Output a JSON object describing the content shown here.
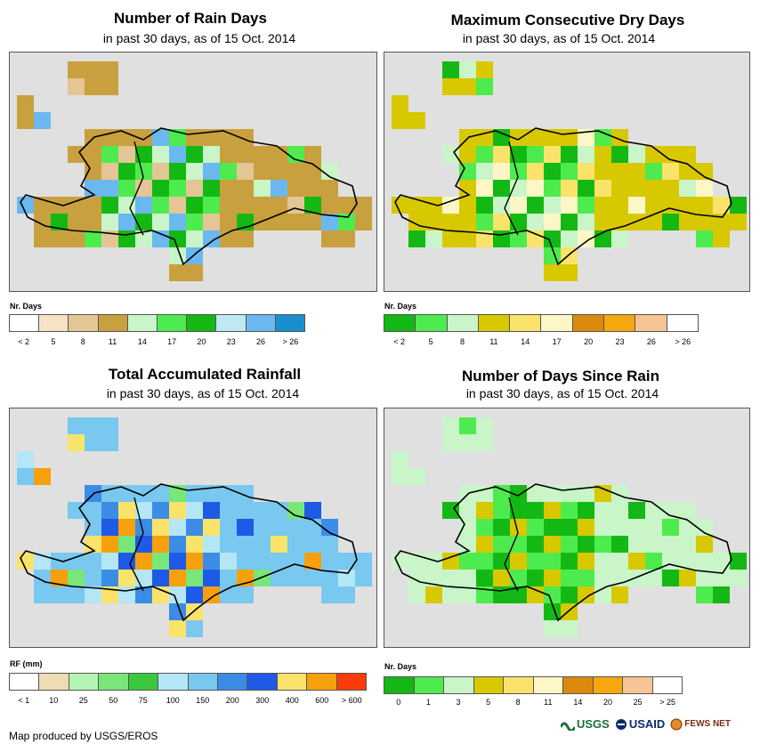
{
  "panels": [
    {
      "id": "rain-days",
      "title": "Number of Rain Days",
      "subtitle": "in past 30 days, as of 15 Oct. 2014",
      "legend_title": "Nr. Days",
      "legend_colors": [
        "#ffffff",
        "#f5e3c8",
        "#e3c596",
        "#c9a03e",
        "#c9f5c9",
        "#4eeb4e",
        "#14b814",
        "#bfe8f5",
        "#6ab8ee",
        "#1a8fd0"
      ],
      "legend_ticks": [
        "< 2",
        "5",
        "8",
        "11",
        "14",
        "17",
        "20",
        "23",
        "26",
        "> 26"
      ],
      "fill_color": "#c9a03e",
      "accent_colors": [
        "#14b814",
        "#4eeb4e",
        "#c9f5c9",
        "#e3c596",
        "#6ab8ee"
      ]
    },
    {
      "id": "max-dry-days",
      "title": "Maximum Consecutive Dry Days",
      "subtitle": "in past 30 days, as of 15 Oct. 2014",
      "legend_title": "Nr. Days",
      "legend_colors": [
        "#14b814",
        "#4eeb4e",
        "#c9f5c9",
        "#d8c800",
        "#fae36a",
        "#fdf7c8",
        "#db8a0e",
        "#f6a70e",
        "#f7c493",
        "#ffffff"
      ],
      "legend_ticks": [
        "< 2",
        "5",
        "8",
        "11",
        "14",
        "17",
        "20",
        "23",
        "26",
        "> 26"
      ],
      "fill_color": "#d8c800",
      "accent_colors": [
        "#14b814",
        "#4eeb4e",
        "#c9f5c9",
        "#fae36a",
        "#fdf7c8"
      ]
    },
    {
      "id": "total-rainfall",
      "title": "Total Accumulated Rainfall",
      "subtitle": "in past 30 days, as of 15 Oct. 2014",
      "legend_title": "RF (mm)",
      "legend_colors": [
        "#ffffff",
        "#f0dcb4",
        "#b4f5b4",
        "#78e678",
        "#3cc83c",
        "#b4e6f5",
        "#78c8f0",
        "#3c8ce6",
        "#1e5ae6",
        "#fae36a",
        "#f6a00e",
        "#fa3c0a"
      ],
      "legend_ticks": [
        "< 1",
        "10",
        "25",
        "50",
        "75",
        "100",
        "150",
        "200",
        "300",
        "400",
        "600",
        "> 600"
      ],
      "fill_color": "#78c8f0",
      "accent_colors": [
        "#3c8ce6",
        "#1e5ae6",
        "#fae36a",
        "#f6a00e",
        "#b4e6f5",
        "#78e678"
      ]
    },
    {
      "id": "days-since-rain",
      "title": "Number of Days Since Rain",
      "subtitle": "in past 30 days, as of 15 Oct. 2014",
      "legend_title": "Nr. Days",
      "legend_colors": [
        "#14b814",
        "#4eeb4e",
        "#c9f5c9",
        "#d8c800",
        "#fae36a",
        "#fdf7c8",
        "#db8a0e",
        "#f6a70e",
        "#f7c493",
        "#ffffff"
      ],
      "legend_ticks": [
        "0",
        "1",
        "3",
        "5",
        "8",
        "11",
        "14",
        "20",
        "25",
        "> 25"
      ],
      "fill_color": "#c9f5c9",
      "accent_colors": [
        "#14b814",
        "#4eeb4e",
        "#d8c800"
      ]
    }
  ],
  "footer": {
    "credit": "Map produced by USGS/EROS"
  },
  "logos": {
    "usgs": "USGS",
    "usaid": "USAID",
    "fewsnet": "FEWS NET"
  }
}
